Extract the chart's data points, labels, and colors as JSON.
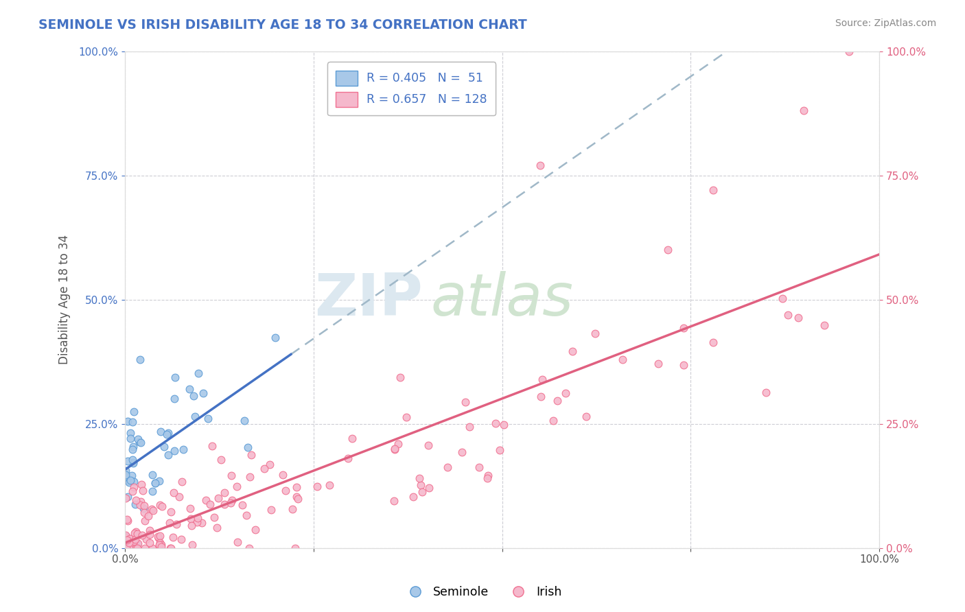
{
  "title": "SEMINOLE VS IRISH DISABILITY AGE 18 TO 34 CORRELATION CHART",
  "source_text": "Source: ZipAtlas.com",
  "ylabel": "Disability Age 18 to 34",
  "seminole_color": "#5b9bd5",
  "irish_color": "#f07090",
  "seminole_face": "#a8c8e8",
  "irish_face": "#f5b8cc",
  "trendline_seminole_color": "#4472c4",
  "trendline_irish_color": "#e06080",
  "trendline_dashed_color": "#a0b8c8",
  "background_color": "#ffffff",
  "grid_color": "#c8c8d0",
  "R_seminole": 0.405,
  "N_seminole": 51,
  "R_irish": 0.657,
  "N_irish": 128,
  "watermark_zip_color": "#d0dce8",
  "watermark_atlas_color": "#c8d8c8",
  "title_color": "#4472c4",
  "source_color": "#888888",
  "left_tick_color": "#4472c4",
  "right_tick_color": "#e06080",
  "bottom_tick_color": "#555555",
  "legend_text_color": "#333333",
  "legend_r_color": "#4472c4"
}
